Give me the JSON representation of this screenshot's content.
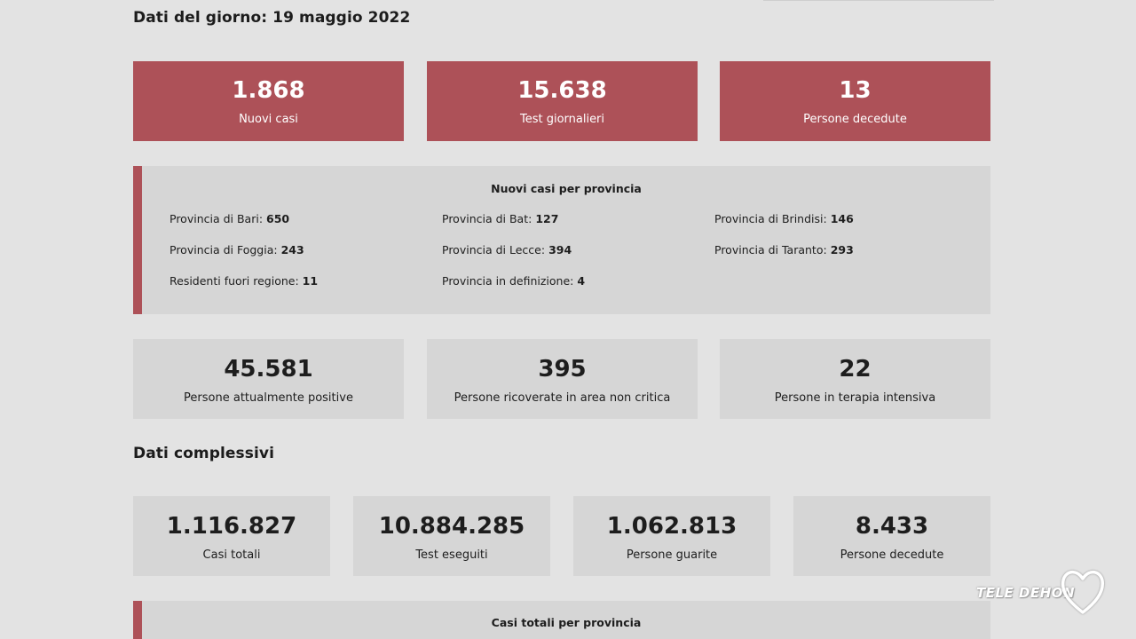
{
  "day_section": {
    "heading": "Dati del giorno: 19 maggio 2022",
    "highlights": [
      {
        "value": "1.868",
        "label": "Nuovi casi"
      },
      {
        "value": "15.638",
        "label": "Test giornalieri"
      },
      {
        "value": "13",
        "label": "Persone decedute"
      }
    ],
    "provinces": {
      "title": "Nuovi casi per provincia",
      "items": [
        {
          "label": "Provincia di Bari:",
          "value": "650"
        },
        {
          "label": "Provincia di Bat:",
          "value": "127"
        },
        {
          "label": "Provincia di Brindisi:",
          "value": "146"
        },
        {
          "label": "Provincia di Foggia:",
          "value": "243"
        },
        {
          "label": "Provincia di Lecce:",
          "value": "394"
        },
        {
          "label": "Provincia di Taranto:",
          "value": "293"
        },
        {
          "label": "Residenti fuori regione:",
          "value": "11"
        },
        {
          "label": "Provincia in definizione:",
          "value": "4"
        }
      ]
    },
    "stats": [
      {
        "value": "45.581",
        "label": "Persone attualmente positive"
      },
      {
        "value": "395",
        "label": "Persone ricoverate in area non critica"
      },
      {
        "value": "22",
        "label": "Persone in terapia intensiva"
      }
    ]
  },
  "total_section": {
    "heading": "Dati complessivi",
    "stats": [
      {
        "value": "1.116.827",
        "label": "Casi totali"
      },
      {
        "value": "10.884.285",
        "label": "Test eseguiti"
      },
      {
        "value": "1.062.813",
        "label": "Persone guarite"
      },
      {
        "value": "8.433",
        "label": "Persone decedute"
      }
    ],
    "provinces_title": "Casi totali per provincia"
  },
  "watermark": {
    "text": "TELE DEHON"
  },
  "colors": {
    "accent": "#ad5158",
    "card_grey": "#d6d6d6",
    "background": "#e3e3e3"
  }
}
